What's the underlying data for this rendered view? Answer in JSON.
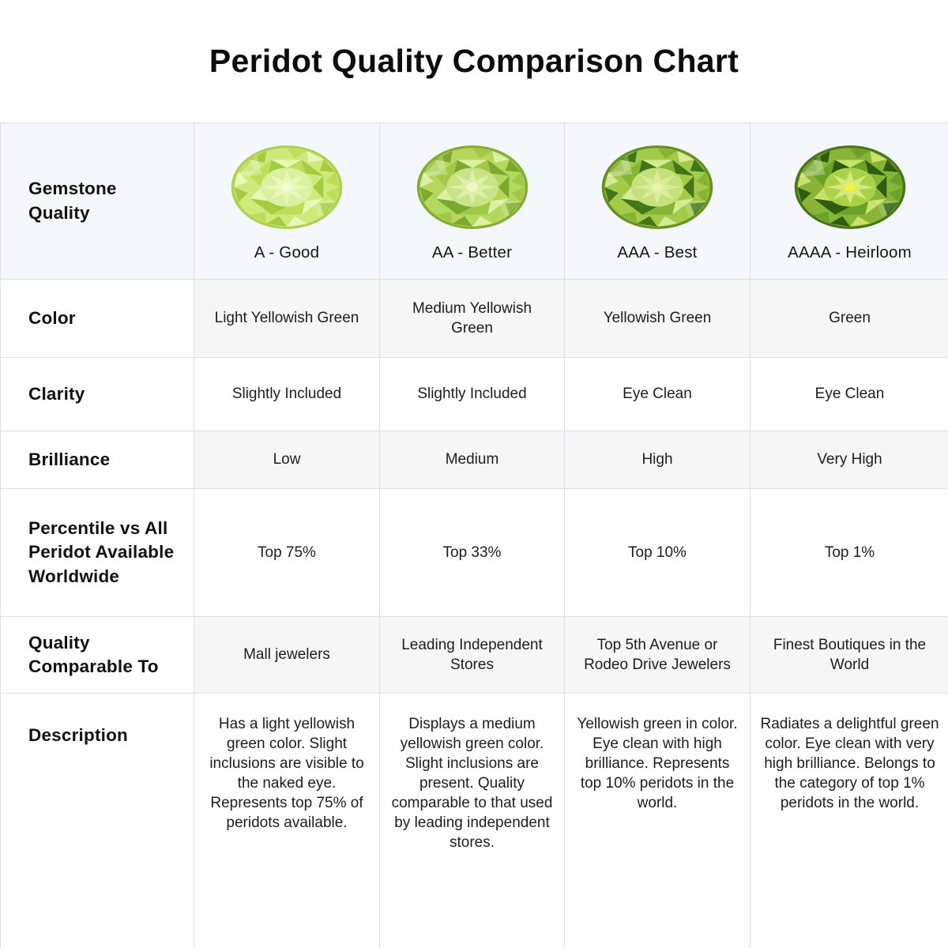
{
  "title": "Peridot Quality Comparison Chart",
  "table": {
    "row_labels": {
      "gemstone_quality": "Gemstone Quality",
      "color": "Color",
      "clarity": "Clarity",
      "brilliance": "Brilliance",
      "percentile": "Percentile vs All Peridot Available Worldwide",
      "comparable": "Quality Comparable To",
      "description": "Description"
    },
    "grades": [
      {
        "label": "A - Good",
        "color": "Light Yellowish Green",
        "clarity": "Slightly Included",
        "brilliance": "Low",
        "percentile": "Top 75%",
        "comparable": "Mall jewelers",
        "description": "Has a light yellowish green color. Slight inclusions are visible to the naked eye. Represents top 75% of peridots available.",
        "gem_palette": {
          "rim": "#aed153",
          "base": "#cfe97b",
          "light": "#e9f7b6",
          "mid": "#bede58",
          "dark": "#a3cc41",
          "table": "#daf0a2",
          "star": "#eaf7bb",
          "center": "#f2fbd0"
        }
      },
      {
        "label": "AA - Better",
        "color": "Medium Yellowish Green",
        "clarity": "Slightly Included",
        "brilliance": "Medium",
        "percentile": "Top 33%",
        "comparable": "Leading Independent Stores",
        "description": "Displays a medium yellowish green color. Slight inclusions are present. Quality comparable to that used by leading independent stores.",
        "gem_palette": {
          "rim": "#85ad32",
          "base": "#b5d75e",
          "light": "#dcefa4",
          "mid": "#a0c945",
          "dark": "#7aa92e",
          "table": "#c9e487",
          "star": "#def0a8",
          "center": "#eef7c6"
        }
      },
      {
        "label": "AAA - Best",
        "color": "Yellowish Green",
        "clarity": "Eye Clean",
        "brilliance": "High",
        "percentile": "Top 10%",
        "comparable": "Top 5th Avenue or Rodeo Drive Jewelers",
        "description": "Yellowish green in color. Eye clean with high brilliance. Represents top 10% peridots in the world.",
        "gem_palette": {
          "rim": "#64921f",
          "base": "#a3ca48",
          "light": "#d5ea92",
          "mid": "#86b434",
          "dark": "#41761b",
          "table": "#c6e179",
          "star": "#d9ec9e",
          "center": "#eaf4a8"
        }
      },
      {
        "label": "AAAA - Heirloom",
        "color": "Green",
        "clarity": "Eye Clean",
        "brilliance": "Very High",
        "percentile": "Top 1%",
        "comparable": "Finest Boutiques in the World",
        "description": "Radiates a delightful green color. Eye clean with very high brilliance. Belongs to the category of top 1% peridots in the world.",
        "gem_palette": {
          "rim": "#4b751a",
          "base": "#88b438",
          "light": "#c8e267",
          "mid": "#6ba22a",
          "dark": "#2e5d12",
          "table": "#abd148",
          "star": "#d5e97c",
          "center": "#eef53e"
        }
      }
    ]
  },
  "colors": {
    "header_row_bg": "#f4f8fd",
    "stripe_row_bg": "#f6f6f6",
    "border": "#dcdfe3",
    "text": "#1d1d1d"
  },
  "chart_data": {
    "type": "table",
    "title": "Peridot Quality Comparison Chart",
    "columns": [
      "Gemstone Quality",
      "A - Good",
      "AA - Better",
      "AAA - Best",
      "AAAA - Heirloom"
    ],
    "rows": [
      [
        "Color",
        "Light Yellowish Green",
        "Medium Yellowish Green",
        "Yellowish Green",
        "Green"
      ],
      [
        "Clarity",
        "Slightly Included",
        "Slightly Included",
        "Eye Clean",
        "Eye Clean"
      ],
      [
        "Brilliance",
        "Low",
        "Medium",
        "High",
        "Very High"
      ],
      [
        "Percentile vs All Peridot Available Worldwide",
        "Top 75%",
        "Top 33%",
        "Top 10%",
        "Top 1%"
      ],
      [
        "Quality Comparable To",
        "Mall jewelers",
        "Leading Independent Stores",
        "Top 5th Avenue or Rodeo Drive Jewelers",
        "Finest Boutiques in the World"
      ],
      [
        "Description",
        "Has a light yellowish green color. Slight inclusions are visible to the naked eye. Represents top 75% of peridots available.",
        "Displays a medium yellowish green color. Slight inclusions are present. Quality comparable to that used by leading independent stores.",
        "Yellowish green in color. Eye clean with high brilliance. Represents top 10% peridots in the world.",
        "Radiates a delightful green color. Eye clean with very high brilliance. Belongs to the category of top 1% peridots in the world."
      ]
    ]
  }
}
